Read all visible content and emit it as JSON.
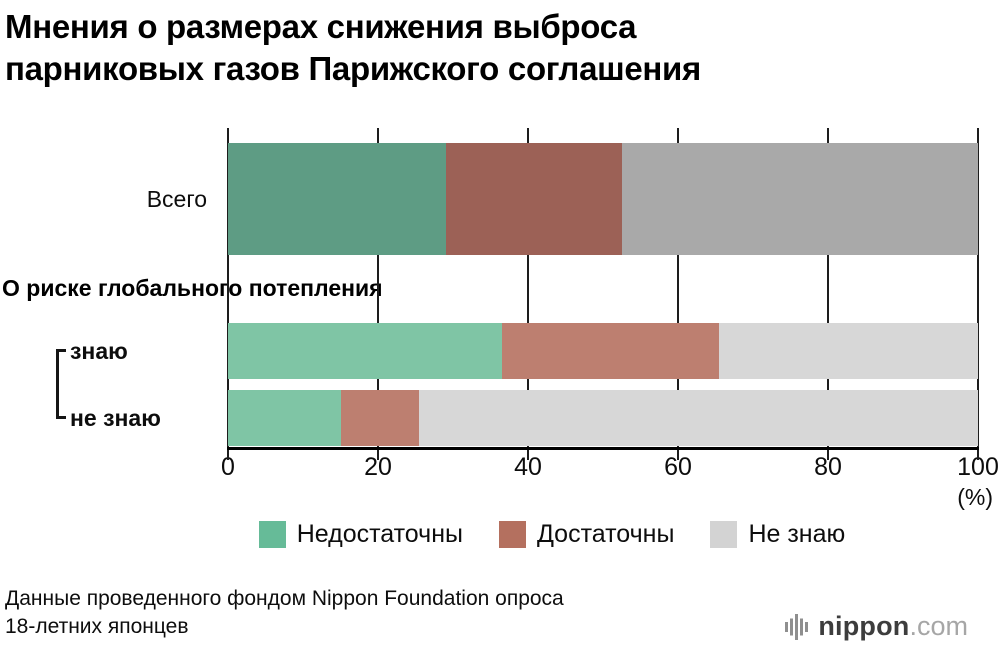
{
  "title": "Мнения о размерах снижения выброса\nпарниковых газов Парижского соглашения",
  "source": "Данные проведенного фондом Nippon Foundation опроса\n18-летних японцев",
  "logo": {
    "brand": "nippon",
    "tld": ".com",
    "icon": "soundwave-icon"
  },
  "chart_data": {
    "type": "bar",
    "stacked": true,
    "orientation": "horizontal",
    "title": "Мнения о размерах снижения выброса парниковых газов Парижского соглашения",
    "group_heading": "О риске глобального потепления",
    "categories": [
      "Всего",
      "знаю",
      "не знаю"
    ],
    "series": [
      {
        "name": "Недостаточны",
        "values": [
          29,
          36.5,
          15
        ]
      },
      {
        "name": "Достаточны",
        "values": [
          23.5,
          29,
          10.5
        ]
      },
      {
        "name": "Не знаю",
        "values": [
          47.5,
          34.5,
          74.5
        ]
      }
    ],
    "xlim": [
      0,
      100
    ],
    "x_ticks": [
      0,
      20,
      40,
      60,
      80,
      100
    ],
    "x_unit": "(%)",
    "grid": true,
    "legend_position": "bottom",
    "row_palette": [
      "total",
      "subgroup",
      "subgroup"
    ],
    "colors": {
      "total": [
        "#5e9c84",
        "#9c6156",
        "#a9a9a9"
      ],
      "subgroup": [
        "#7fc5a5",
        "#bd7f70",
        "#d7d7d7"
      ],
      "legend": [
        "#66bb98",
        "#b4705f",
        "#d3d3d3"
      ]
    }
  }
}
